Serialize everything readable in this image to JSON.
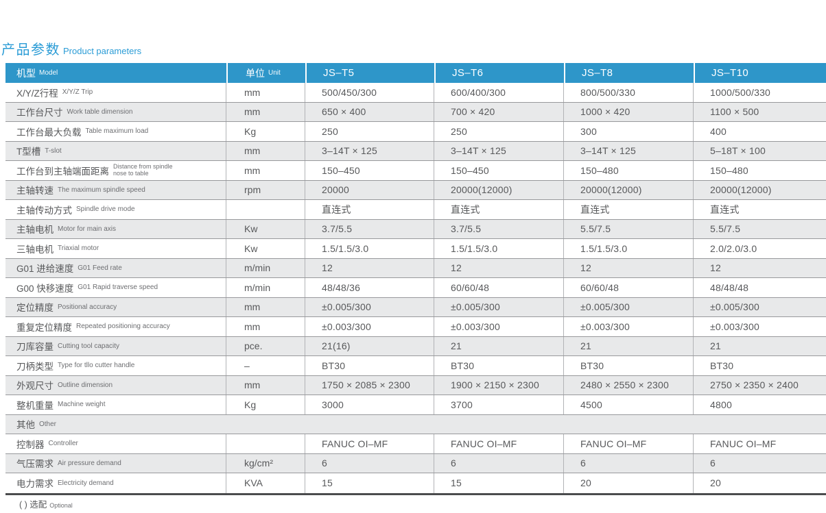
{
  "colors": {
    "accent_blue_header": "#2e96c9",
    "accent_blue_title": "#2b9cd6",
    "row_alt_gray": "#e8e9ea",
    "text_dark": "#57585a",
    "text_sub": "#6d6e71",
    "table_bottom_bar": "#4a4b4d"
  },
  "title": {
    "zh": "产品参数",
    "en": "Product parameters"
  },
  "table": {
    "header": {
      "model_zh": "机型",
      "model_en": "Model",
      "unit_zh": "单位",
      "unit_en": "Unit"
    },
    "models": [
      "JS–T5",
      "JS–T6",
      "JS–T8",
      "JS–T10"
    ],
    "rows": [
      {
        "zh": "X/Y/Z行程",
        "en": "X/Y/Z Trip",
        "unit": "mm",
        "values": [
          "500/450/300",
          "600/400/300",
          "800/500/330",
          "1000/500/330"
        ]
      },
      {
        "zh": "工作台尺寸",
        "en": "Work table dimension",
        "unit": "mm",
        "values": [
          "650 × 400",
          "700 × 420",
          "1000 × 420",
          "1100 × 500"
        ]
      },
      {
        "zh": "工作台最大负载",
        "en": "Table maximum load",
        "unit": "Kg",
        "values": [
          "250",
          "250",
          "300",
          "400"
        ]
      },
      {
        "zh": "T型槽",
        "en": "T-slot",
        "unit": "mm",
        "values": [
          "3–14T × 125",
          "3–14T × 125",
          "3–14T × 125",
          "5–18T × 100"
        ]
      },
      {
        "zh": "工作台到主轴端面距离",
        "en": "Distance from spindle\nnose to table",
        "unit": "mm",
        "values": [
          "150–450",
          "150–450",
          "150–480",
          "150–480"
        ]
      },
      {
        "zh": "主轴转速",
        "en": "The maximum spindle speed",
        "unit": "rpm",
        "values": [
          "20000",
          "20000(12000)",
          "20000(12000)",
          "20000(12000)"
        ]
      },
      {
        "zh": "主轴传动方式",
        "en": "Spindle drive mode",
        "unit": "",
        "values": [
          "直连式",
          "直连式",
          "直连式",
          "直连式"
        ]
      },
      {
        "zh": "主轴电机",
        "en": "Motor for main axis",
        "unit": "Kw",
        "values": [
          "3.7/5.5",
          "3.7/5.5",
          "5.5/7.5",
          "5.5/7.5"
        ]
      },
      {
        "zh": "三轴电机",
        "en": "Triaxial motor",
        "unit": "Kw",
        "values": [
          "1.5/1.5/3.0",
          "1.5/1.5/3.0",
          "1.5/1.5/3.0",
          "2.0/2.0/3.0"
        ]
      },
      {
        "zh": "G01 进给速度",
        "en": "G01 Feed rate",
        "unit": "m/min",
        "values": [
          "12",
          "12",
          "12",
          "12"
        ]
      },
      {
        "zh": "G00 快移速度",
        "en": "G01 Rapid traverse speed",
        "unit": "m/min",
        "values": [
          "48/48/36",
          "60/60/48",
          "60/60/48",
          "48/48/48"
        ]
      },
      {
        "zh": "定位精度",
        "en": "Positional accuracy",
        "unit": "mm",
        "values": [
          "±0.005/300",
          "±0.005/300",
          "±0.005/300",
          "±0.005/300"
        ]
      },
      {
        "zh": "重复定位精度",
        "en": "Repeated positioning accuracy",
        "unit": "mm",
        "values": [
          "±0.003/300",
          "±0.003/300",
          "±0.003/300",
          "±0.003/300"
        ]
      },
      {
        "zh": "刀库容量",
        "en": "Cutting tool capacity",
        "unit": "pce.",
        "values": [
          "21(16)",
          "21",
          "21",
          "21"
        ]
      },
      {
        "zh": "刀柄类型",
        "en": "Type for tllo cutter handle",
        "unit": "–",
        "values": [
          "BT30",
          "BT30",
          "BT30",
          "BT30"
        ]
      },
      {
        "zh": "外观尺寸",
        "en": "Outline dimension",
        "unit": "mm",
        "values": [
          "1750 × 2085 × 2300",
          "1900 × 2150 × 2300",
          "2480 × 2550 × 2300",
          "2750 × 2350 × 2400"
        ]
      },
      {
        "zh": "整机重量",
        "en": "Machine weight",
        "unit": "Kg",
        "values": [
          "3000",
          "3700",
          "4500",
          "4800"
        ]
      },
      {
        "type": "section",
        "zh": "其他",
        "en": "Other"
      },
      {
        "zh": "控制器",
        "en": "Controller",
        "unit": "",
        "values": [
          "FANUC OI–MF",
          "FANUC OI–MF",
          "FANUC OI–MF",
          "FANUC OI–MF"
        ]
      },
      {
        "zh": "气压需求",
        "en": "Air pressure demand",
        "unit": "kg/cm²",
        "values": [
          "6",
          "6",
          "6",
          "6"
        ]
      },
      {
        "zh": "电力需求",
        "en": "Electricity demand",
        "unit": "KVA",
        "values": [
          "15",
          "15",
          "20",
          "20"
        ]
      }
    ]
  },
  "footnote": {
    "zh": "( ) 选配",
    "en": "Optional"
  }
}
